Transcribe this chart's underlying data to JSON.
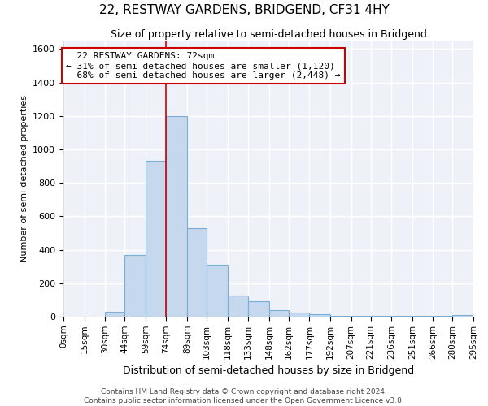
{
  "title": "22, RESTWAY GARDENS, BRIDGEND, CF31 4HY",
  "subtitle": "Size of property relative to semi-detached houses in Bridgend",
  "xlabel": "Distribution of semi-detached houses by size in Bridgend",
  "ylabel": "Number of semi-detached properties",
  "property_label": "22 RESTWAY GARDENS: 72sqm",
  "pct_smaller": 31,
  "count_smaller": 1120,
  "pct_larger": 68,
  "count_larger": 2448,
  "bin_edges": [
    0,
    15,
    30,
    44,
    59,
    74,
    89,
    103,
    118,
    133,
    148,
    162,
    177,
    192,
    207,
    221,
    236,
    251,
    266,
    280,
    295
  ],
  "bar_heights": [
    0,
    0,
    30,
    370,
    930,
    1200,
    530,
    310,
    125,
    90,
    40,
    25,
    15,
    5,
    5,
    5,
    5,
    5,
    5,
    10
  ],
  "bar_color": "#c5d8ed",
  "bar_edge_color": "#7aaed4",
  "vline_x": 74,
  "vline_color": "#cc0000",
  "annotation_box_color": "#cc0000",
  "background_color": "#eef2f8",
  "grid_color": "#ffffff",
  "ylim": [
    0,
    1650
  ],
  "tick_labels": [
    "0sqm",
    "15sqm",
    "30sqm",
    "44sqm",
    "59sqm",
    "74sqm",
    "89sqm",
    "103sqm",
    "118sqm",
    "133sqm",
    "148sqm",
    "162sqm",
    "177sqm",
    "192sqm",
    "207sqm",
    "221sqm",
    "236sqm",
    "251sqm",
    "266sqm",
    "280sqm",
    "295sqm"
  ],
  "footer_line1": "Contains HM Land Registry data © Crown copyright and database right 2024.",
  "footer_line2": "Contains public sector information licensed under the Open Government Licence v3.0."
}
